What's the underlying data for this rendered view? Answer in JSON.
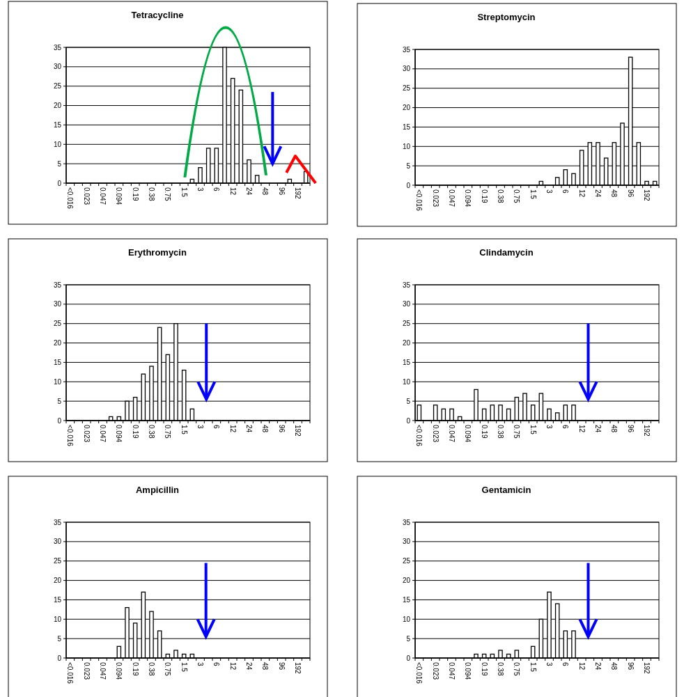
{
  "chart_data": [
    {
      "type": "bar",
      "title": "Tetracycline",
      "categories": [
        "<0.016",
        null,
        "0.023",
        null,
        "0.047",
        null,
        "0.094",
        null,
        "0.19",
        null,
        "0.38",
        null,
        "0.75",
        null,
        "1.5",
        null,
        "3",
        null,
        "6",
        null,
        "12",
        null,
        "24",
        null,
        "48",
        null,
        "96",
        null,
        "192",
        null
      ],
      "values": [
        0,
        0,
        0,
        0,
        0,
        0,
        0,
        0,
        0,
        0,
        0,
        0,
        0,
        0,
        0,
        1,
        4,
        9,
        9,
        35,
        27,
        24,
        6,
        2,
        0,
        0,
        0,
        1,
        0,
        3
      ],
      "color": "#ffffff",
      "ylim": [
        0,
        35
      ],
      "yticks": [
        0,
        5,
        10,
        15,
        20,
        25,
        30,
        35
      ],
      "grid": "y"
    },
    {
      "type": "bar",
      "title": "Streptomycin",
      "categories": [
        "<0.016",
        null,
        "0.023",
        null,
        "0.047",
        null,
        "0.094",
        null,
        "0.19",
        null,
        "0.38",
        null,
        "0.75",
        null,
        "1.5",
        null,
        "3",
        null,
        "6",
        null,
        "12",
        null,
        "24",
        null,
        "48",
        null,
        "96",
        null,
        "192",
        null
      ],
      "values": [
        0,
        0,
        0,
        0,
        0,
        0,
        0,
        0,
        0,
        0,
        0,
        0,
        0,
        0,
        0,
        1,
        0,
        2,
        4,
        3,
        9,
        11,
        11,
        7,
        11,
        16,
        33,
        11,
        1,
        1
      ],
      "color": "#ffffff",
      "ylim": [
        0,
        35
      ],
      "yticks": [
        0,
        5,
        10,
        15,
        20,
        25,
        30,
        35
      ],
      "grid": "y"
    },
    {
      "type": "bar",
      "title": "Erythromycin",
      "categories": [
        "<0.016",
        null,
        "0.023",
        null,
        "0.047",
        null,
        "0.094",
        null,
        "0.19",
        null,
        "0.38",
        null,
        "0.75",
        null,
        "1.5",
        null,
        "3",
        null,
        "6",
        null,
        "12",
        null,
        "24",
        null,
        "48",
        null,
        "96",
        null,
        "192",
        null
      ],
      "values": [
        0,
        0,
        0,
        0,
        0,
        1,
        1,
        5,
        6,
        12,
        14,
        24,
        17,
        25,
        13,
        3,
        0,
        0,
        0,
        0,
        0,
        0,
        0,
        0,
        0,
        0,
        0,
        0,
        0,
        0
      ],
      "color": "#ffffff",
      "ylim": [
        0,
        35
      ],
      "yticks": [
        0,
        5,
        10,
        15,
        20,
        25,
        30,
        35
      ],
      "grid": "y"
    },
    {
      "type": "bar",
      "title": "Clindamycin",
      "categories": [
        "<0.016",
        null,
        "0.023",
        null,
        "0.047",
        null,
        "0.094",
        null,
        "0.19",
        null,
        "0.38",
        null,
        "0.75",
        null,
        "1.5",
        null,
        "3",
        null,
        "6",
        null,
        "12",
        null,
        "24",
        null,
        "48",
        null,
        "96",
        null,
        "192",
        null
      ],
      "values": [
        4,
        0,
        4,
        3,
        3,
        1,
        0,
        8,
        3,
        4,
        4,
        3,
        6,
        7,
        4,
        7,
        3,
        2,
        4,
        4,
        0,
        0,
        0,
        0,
        0,
        0,
        0,
        0,
        0,
        0
      ],
      "color": "#ffffff",
      "ylim": [
        0,
        35
      ],
      "yticks": [
        0,
        5,
        10,
        15,
        20,
        25,
        30,
        35
      ],
      "grid": "y"
    },
    {
      "type": "bar",
      "title": "Ampicillin",
      "categories": [
        "<0.016",
        null,
        "0.023",
        null,
        "0.047",
        null,
        "0.094",
        null,
        "0.19",
        null,
        "0.38",
        null,
        "0.75",
        null,
        "1.5",
        null,
        "3",
        null,
        "6",
        null,
        "12",
        null,
        "24",
        null,
        "48",
        null,
        "96",
        null,
        "192",
        null
      ],
      "values": [
        0,
        0,
        0,
        0,
        0,
        0,
        3,
        13,
        9,
        17,
        12,
        7,
        1,
        2,
        1,
        1,
        0,
        0,
        0,
        0,
        0,
        0,
        0,
        0,
        0,
        0,
        0,
        0,
        0,
        0
      ],
      "color": "#ffffff",
      "ylim": [
        0,
        35
      ],
      "yticks": [
        0,
        5,
        10,
        15,
        20,
        25,
        30,
        35
      ],
      "grid": "y"
    },
    {
      "type": "bar",
      "title": "Gentamicin",
      "categories": [
        "<0.016",
        null,
        "0.023",
        null,
        "0.047",
        null,
        "0.094",
        null,
        "0.19",
        null,
        "0.38",
        null,
        "0.75",
        null,
        "1.5",
        null,
        "3",
        null,
        "6",
        null,
        "12",
        null,
        "24",
        null,
        "48",
        null,
        "96",
        null,
        "192",
        null
      ],
      "values": [
        0,
        0,
        0,
        0,
        0,
        0,
        0,
        1,
        1,
        1,
        2,
        1,
        2,
        0,
        3,
        10,
        17,
        14,
        7,
        7,
        0,
        0,
        0,
        0,
        0,
        0,
        0,
        0,
        0,
        0
      ],
      "color": "#ffffff",
      "ylim": [
        0,
        35
      ],
      "yticks": [
        0,
        5,
        10,
        15,
        20,
        25,
        30,
        35
      ],
      "grid": "y"
    }
  ]
}
